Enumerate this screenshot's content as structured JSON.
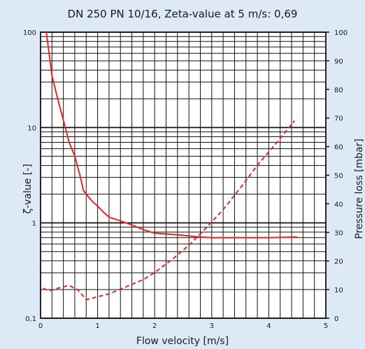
{
  "chart_data": {
    "type": "line",
    "title": "DN 250 PN 10/16, Zeta-value at 5 m/s: 0,69",
    "xlabel": "Flow velocity [m/s]",
    "ylabel_left": "ζ-value [-]",
    "ylabel_right": "Pressure loss [mbar]",
    "xlim": [
      0,
      5
    ],
    "ylim_left": [
      0.1,
      100
    ],
    "left_scale": "log",
    "ylim_right": [
      0,
      100
    ],
    "right_scale": "linear",
    "grid": true,
    "x_ticks": [
      "0",
      "1",
      "2",
      "3",
      "4",
      "5"
    ],
    "y_left_ticks": [
      "0,1",
      "1",
      "10",
      "100"
    ],
    "y_right_ticks": [
      "0",
      "10",
      "20",
      "30",
      "40",
      "50",
      "60",
      "70",
      "80",
      "90",
      "100"
    ],
    "series": [
      {
        "axis": "left",
        "style": "solid",
        "color": "#e0262b",
        "x": [
          0.1,
          0.15,
          0.2,
          0.3,
          0.4,
          0.5,
          0.6,
          0.7,
          0.75,
          0.8,
          0.9,
          1.0,
          1.1,
          1.2,
          1.4,
          1.6,
          1.8,
          2.0,
          2.4,
          2.8,
          3.0,
          3.5,
          4.0,
          4.5
        ],
        "y": [
          100,
          60,
          35,
          20,
          12,
          7,
          5,
          3,
          2.2,
          2,
          1.7,
          1.5,
          1.3,
          1.15,
          1.05,
          0.95,
          0.85,
          0.78,
          0.75,
          0.71,
          0.7,
          0.7,
          0.7,
          0.71
        ]
      },
      {
        "axis": "right",
        "style": "dashed",
        "color": "#e0262b",
        "x": [
          0.05,
          0.15,
          0.3,
          0.5,
          0.65,
          0.8,
          1.0,
          1.2,
          1.5,
          1.8,
          2.0,
          2.3,
          2.6,
          2.9,
          3.2,
          3.5,
          3.8,
          4.1,
          4.45
        ],
        "y": [
          10.5,
          9.5,
          10.5,
          11.5,
          10,
          6.5,
          7.5,
          8.5,
          11,
          13.5,
          16,
          20.5,
          25.5,
          31.5,
          38,
          45.5,
          53.5,
          60.5,
          69
        ]
      }
    ]
  }
}
